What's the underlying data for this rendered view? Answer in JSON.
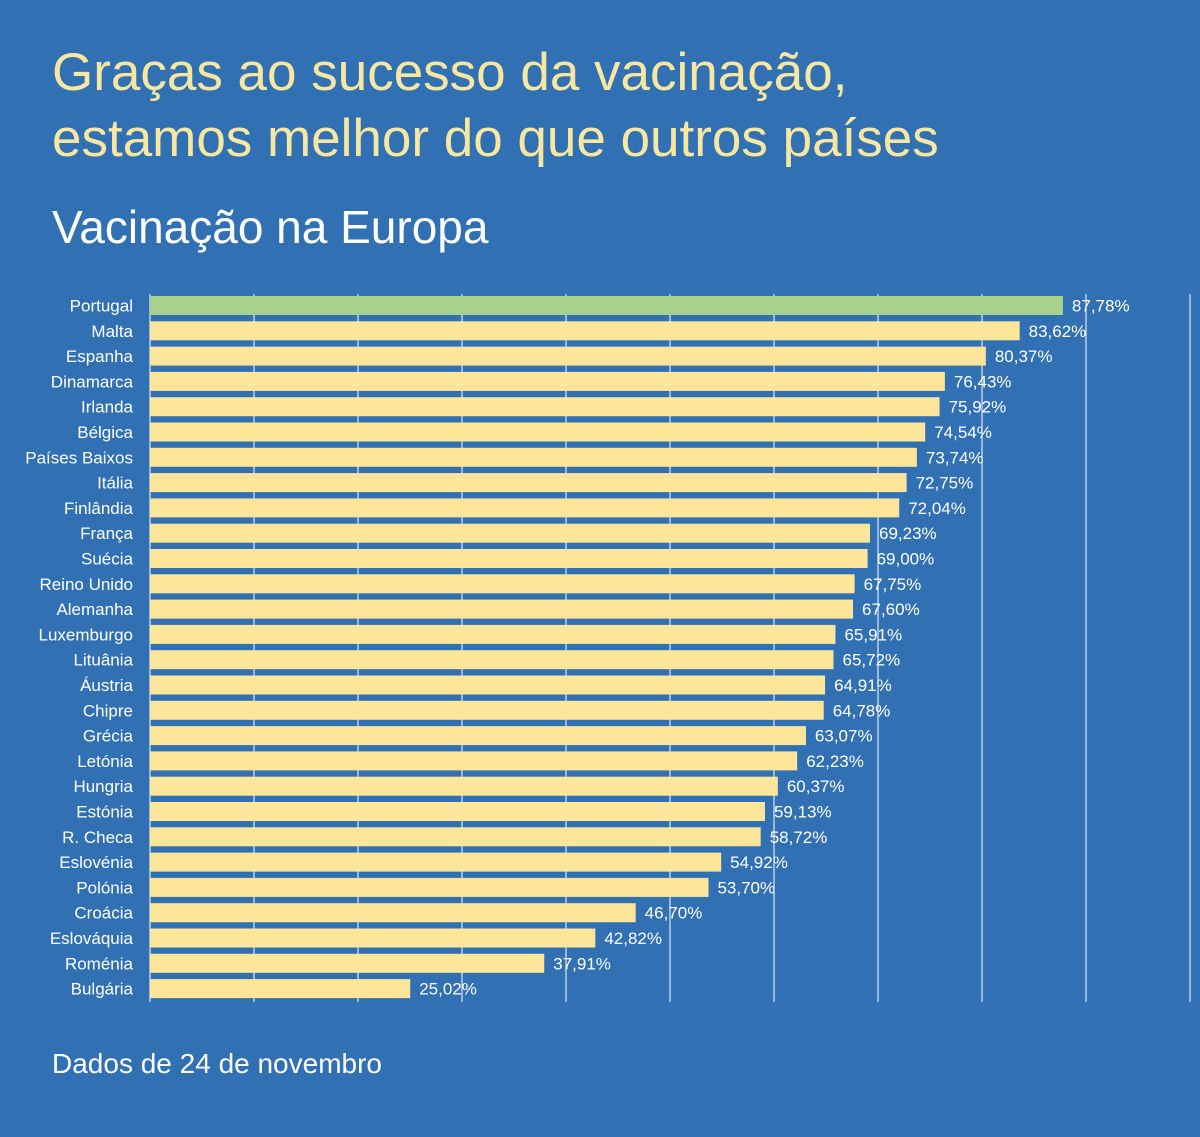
{
  "header": {
    "title_line1": "Graças ao sucesso da vacinação,",
    "title_line2": "estamos melhor do que outros países",
    "subtitle": "Vacinação na Europa"
  },
  "footer": {
    "note": "Dados de 24 de novembro"
  },
  "colors": {
    "background": "#3070b3",
    "title": "#f7e7a0",
    "bar": "#fde59a",
    "highlight_bar": "#a9d18e",
    "text": "#ffffff"
  },
  "chart_data": {
    "type": "bar",
    "orientation": "horizontal",
    "title": "Vacinação na Europa",
    "xlim": [
      0,
      100
    ],
    "grid": true,
    "highlight": "Portugal",
    "categories": [
      "Portugal",
      "Malta",
      "Espanha",
      "Dinamarca",
      "Irlanda",
      "Bélgica",
      "Países Baixos",
      "Itália",
      "Finlândia",
      "França",
      "Suécia",
      "Reino Unido",
      "Alemanha",
      "Luxemburgo",
      "Lituânia",
      "Áustria",
      "Chipre",
      "Grécia",
      "Letónia",
      "Hungria",
      "Estónia",
      "R. Checa",
      "Eslovénia",
      "Polónia",
      "Croácia",
      "Eslováquia",
      "Roménia",
      "Bulgária"
    ],
    "values": [
      87.78,
      83.62,
      80.37,
      76.43,
      75.92,
      74.54,
      73.74,
      72.75,
      72.04,
      69.23,
      69.0,
      67.75,
      67.6,
      65.91,
      65.72,
      64.91,
      64.78,
      63.07,
      62.23,
      60.37,
      59.13,
      58.72,
      54.92,
      53.7,
      46.7,
      42.82,
      37.91,
      25.02
    ],
    "value_labels": [
      "87,78%",
      "83,62%",
      "80,37%",
      "76,43%",
      "75,92%",
      "74,54%",
      "73,74%",
      "72,75%",
      "72,04%",
      "69,23%",
      "69,00%",
      "67,75%",
      "67,60%",
      "65,91%",
      "65,72%",
      "64,91%",
      "64,78%",
      "63,07%",
      "62,23%",
      "60,37%",
      "59,13%",
      "58,72%",
      "54,92%",
      "53,70%",
      "46,70%",
      "42,82%",
      "37,91%",
      "25,02%"
    ]
  }
}
